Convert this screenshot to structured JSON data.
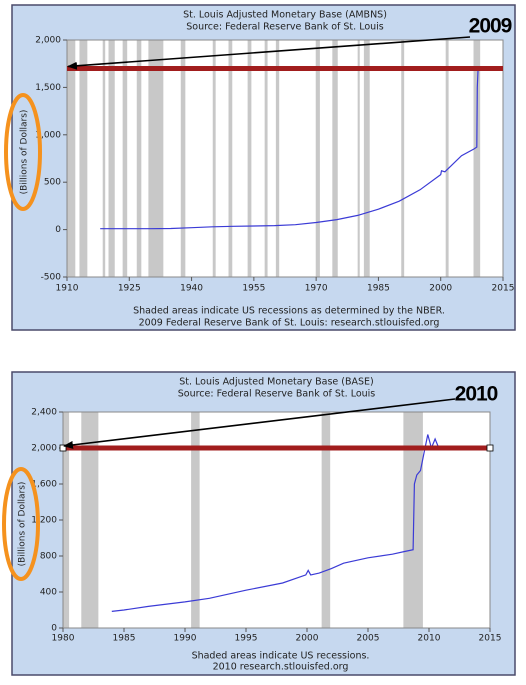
{
  "chart_data": [
    {
      "type": "line",
      "title": "St. Louis Adjusted Monetary Base (AMBNS)",
      "subtitle": "Source: Federal Reserve Bank of St. Louis",
      "y_label": "(Billions of Dollars)",
      "footer": [
        "Shaded areas indicate US recessions as determined by the NBER.",
        "2009 Federal Reserve Bank of St. Louis: research.stlouisfed.org"
      ],
      "annotation": "2009",
      "reference_line": 1700,
      "reference_color": "#a11d1d",
      "color": "#3b3bd6",
      "x": [
        1918,
        1925,
        1930,
        1935,
        1940,
        1945,
        1950,
        1955,
        1960,
        1965,
        1970,
        1975,
        1980,
        1985,
        1990,
        1995,
        2000,
        2000.2,
        2001,
        2005,
        2008,
        2008.7,
        2008.8,
        2009
      ],
      "values": [
        10,
        10,
        10,
        12,
        20,
        30,
        35,
        38,
        42,
        52,
        75,
        105,
        150,
        215,
        300,
        420,
        580,
        620,
        610,
        780,
        850,
        870,
        1500,
        1700
      ],
      "recessions": [
        [
          1910,
          1912
        ],
        [
          1913,
          1914.9
        ],
        [
          1918.6,
          1919.2
        ],
        [
          1920,
          1921.5
        ],
        [
          1923.4,
          1924.5
        ],
        [
          1926.8,
          1927.9
        ],
        [
          1929.6,
          1933.2
        ],
        [
          1937.4,
          1938.5
        ],
        [
          1945.1,
          1945.8
        ],
        [
          1948.9,
          1949.8
        ],
        [
          1953.5,
          1954.4
        ],
        [
          1957.6,
          1958.3
        ],
        [
          1960.3,
          1961.1
        ],
        [
          1969.9,
          1970.9
        ],
        [
          1973.9,
          1975.2
        ],
        [
          1980,
          1980.5
        ],
        [
          1981.5,
          1982.9
        ],
        [
          1990.5,
          1991.2
        ],
        [
          2001.2,
          2001.9
        ],
        [
          2007.9,
          2009.5
        ]
      ],
      "recession_color": "#c8c8c8",
      "xlim": [
        1910,
        2015
      ],
      "xticks": [
        1910,
        1925,
        1940,
        1955,
        1970,
        1985,
        2000,
        2015
      ],
      "ylim": [
        -500,
        2000
      ],
      "yticks": [
        -500,
        0,
        500,
        {
          "value": 1000,
          "label": "1,000"
        },
        {
          "value": 1500,
          "label": "1,500"
        },
        {
          "value": 2000,
          "label": "2,000"
        }
      ]
    },
    {
      "type": "line",
      "title": "St. Louis Adjusted Monetary Base (BASE)",
      "subtitle": "Source: Federal Reserve Bank of St. Louis",
      "y_label": "(Billions of Dollars)",
      "footer": [
        "Shaded areas indicate US recessions.",
        "2010 research.stlouisfed.org"
      ],
      "annotation": "2010",
      "reference_line": 2000,
      "reference_color": "#a11d1d",
      "color": "#3b3bd6",
      "x": [
        1984,
        1985,
        1987,
        1990,
        1992,
        1995,
        1998,
        1999.9,
        2000.1,
        2000.3,
        2001,
        2002,
        2003,
        2005,
        2007,
        2008,
        2008.7,
        2008.8,
        2009,
        2009.3,
        2009.6,
        2009.9,
        2010.2,
        2010.5,
        2010.8
      ],
      "values": [
        185,
        200,
        240,
        290,
        330,
        420,
        500,
        590,
        640,
        590,
        610,
        660,
        720,
        780,
        820,
        850,
        870,
        1600,
        1700,
        1750,
        1950,
        2150,
        2000,
        2100,
        2000
      ],
      "recessions": [
        [
          1980,
          1980.5
        ],
        [
          1981.5,
          1982.9
        ],
        [
          1990.5,
          1991.2
        ],
        [
          2001.2,
          2001.9
        ],
        [
          2007.9,
          2009.5
        ]
      ],
      "recession_color": "#c8c8c8",
      "xlim": [
        1980,
        2015
      ],
      "xticks": [
        1980,
        1985,
        1990,
        1995,
        2000,
        2005,
        2010,
        2015
      ],
      "ylim": [
        0,
        2400
      ],
      "yticks": [
        0,
        400,
        800,
        {
          "value": 1200,
          "label": "1,200"
        },
        {
          "value": 1600,
          "label": "1,600"
        },
        {
          "value": 2000,
          "label": "2,000"
        },
        {
          "value": 2400,
          "label": "2,400"
        }
      ]
    }
  ]
}
